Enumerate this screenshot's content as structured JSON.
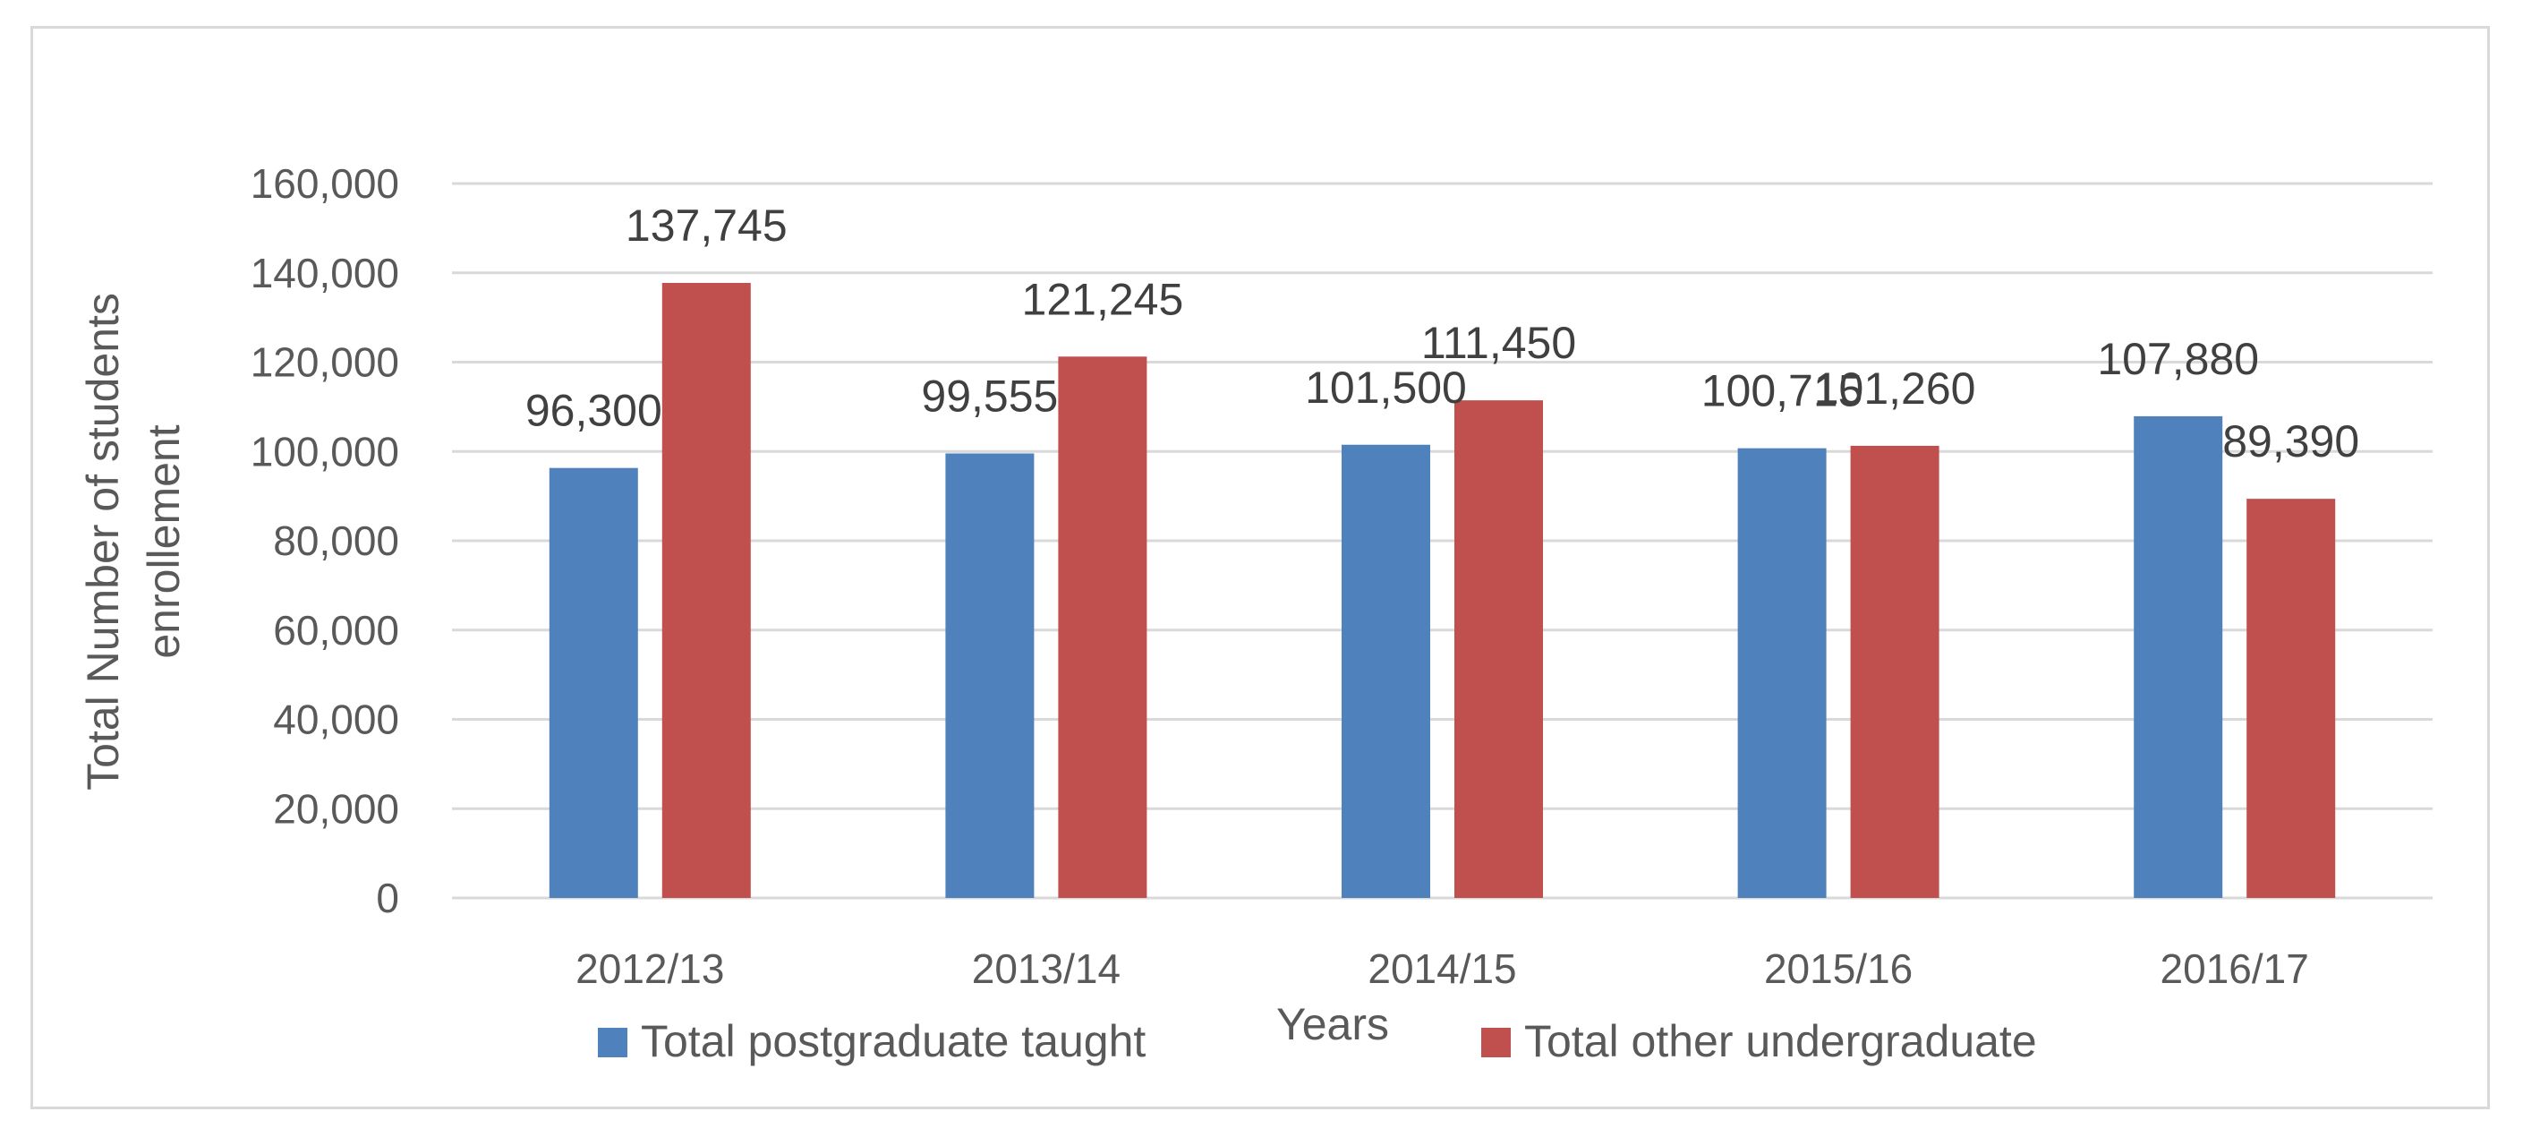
{
  "chart_data": {
    "type": "bar",
    "categories": [
      "2012/13",
      "2013/14",
      "2014/15",
      "2015/16",
      "2016/17"
    ],
    "series": [
      {
        "name": "Total postgraduate taught",
        "values": [
          96300,
          99555,
          101500,
          100715,
          107880
        ],
        "color": "#4f81bd"
      },
      {
        "name": "Total other undergraduate",
        "values": [
          137745,
          121245,
          111450,
          101260,
          89390
        ],
        "color": "#c0504d"
      }
    ],
    "title": "",
    "xlabel": "Years",
    "ylabel_lines": [
      "Total Number of students",
      "enrollement"
    ],
    "ylim": [
      0,
      160000
    ],
    "yticks": [
      0,
      20000,
      40000,
      60000,
      80000,
      100000,
      120000,
      140000,
      160000
    ],
    "ytick_labels": [
      "0",
      "20,000",
      "40,000",
      "60,000",
      "80,000",
      "100,000",
      "120,000",
      "140,000",
      "160,000"
    ],
    "data_labels": [
      [
        "96,300",
        "99,555",
        "101,500",
        "100,715",
        "107,880"
      ],
      [
        "137,745",
        "121,245",
        "111,450",
        "101,260",
        "89,390"
      ]
    ],
    "grid": true,
    "gridline_color": "#d9d9d9",
    "legend_position": "bottom"
  }
}
